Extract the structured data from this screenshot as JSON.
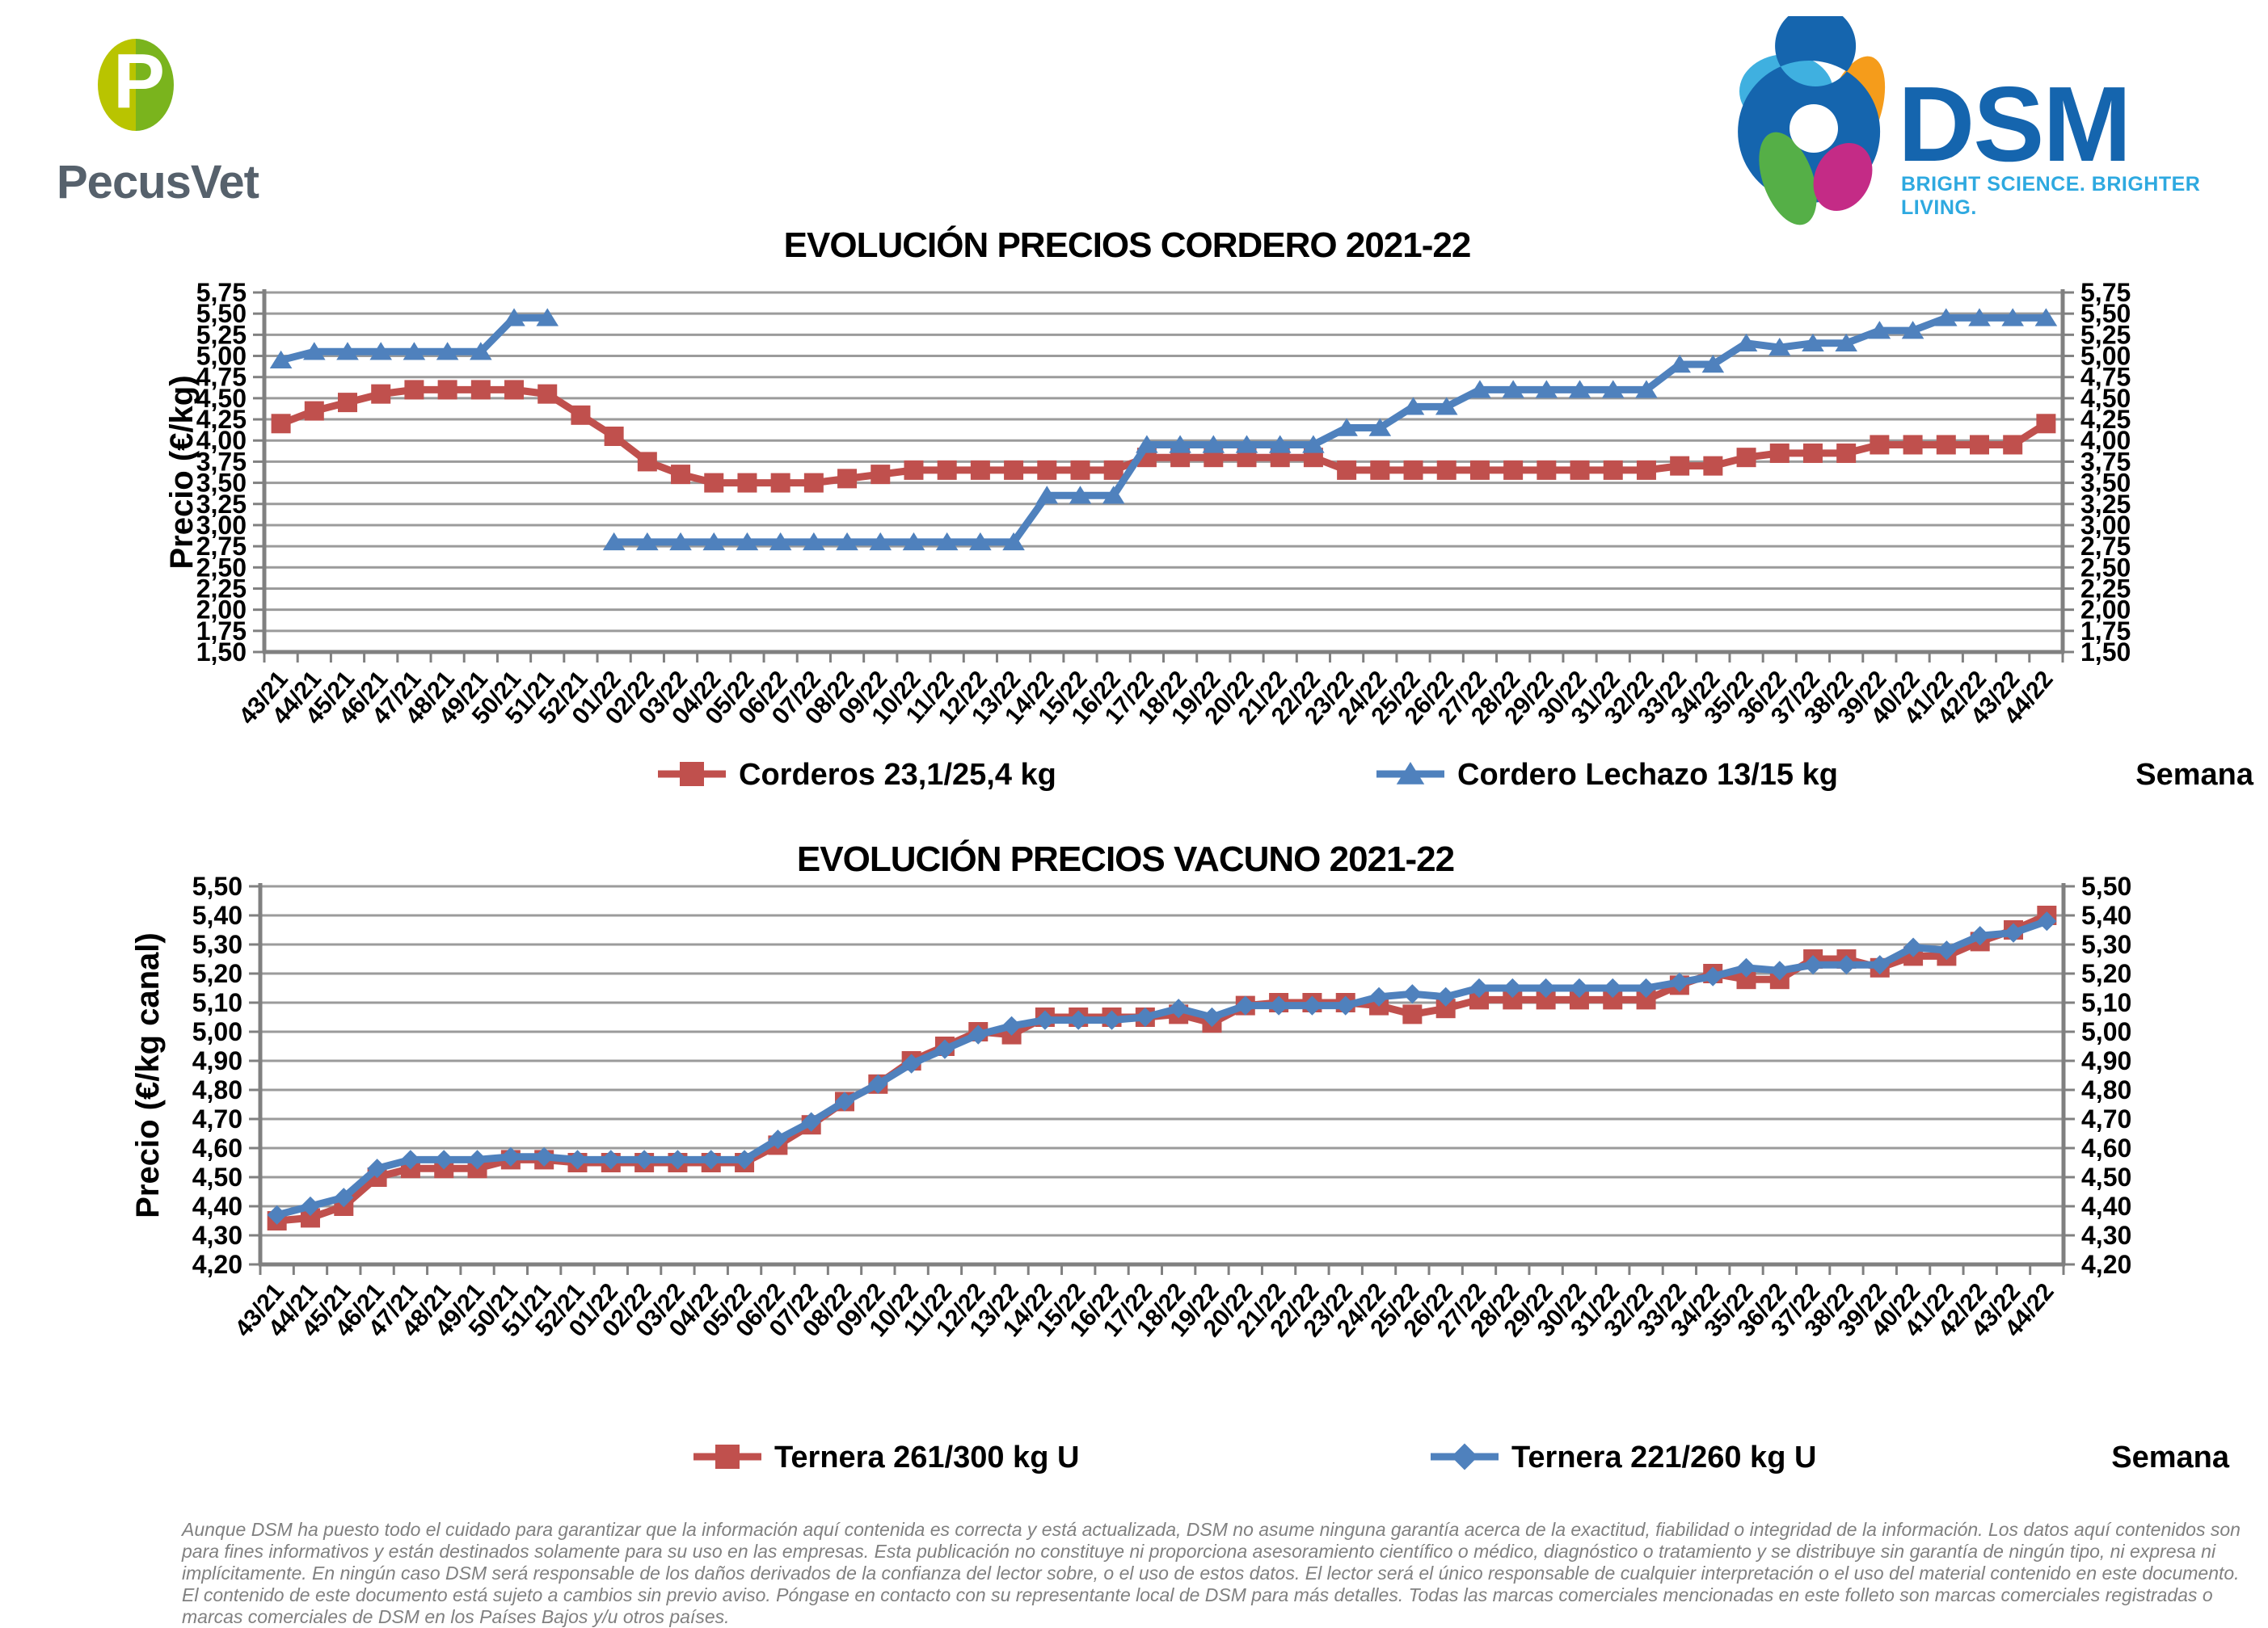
{
  "header": {
    "pecusvet": {
      "initial": "P",
      "name": "PecusVet"
    },
    "dsm": {
      "name": "DSM",
      "tagline": "BRIGHT SCIENCE. BRIGHTER LIVING."
    }
  },
  "colors": {
    "series_red": "#C0504D",
    "series_blue": "#4F81BD",
    "gridline": "#9B9B9B",
    "axis": "#808080",
    "pecusvet_left": "#B9C400",
    "pecusvet_right": "#7AB41D",
    "pecusvet_text": "#56616C",
    "dsm_blue": "#1565AE",
    "dsm_cyan": "#3FB0E0",
    "dsm_orange": "#F59C1B",
    "dsm_green": "#55AF47",
    "dsm_magenta": "#C42B86",
    "footer_gray": "#808080"
  },
  "chart_data": [
    {
      "type": "line",
      "title": "EVOLUCIÓN PRECIOS CORDERO 2021-22",
      "ylabel": "Precio (€/kg)",
      "xlabel": "Semana",
      "ylim": [
        1.5,
        5.75
      ],
      "ystep": 0.25,
      "grid": true,
      "legend_position": "bottom",
      "categories": [
        "43/21",
        "44/21",
        "45/21",
        "46/21",
        "47/21",
        "48/21",
        "49/21",
        "50/21",
        "51/21",
        "52/21",
        "01/22",
        "02/22",
        "03/22",
        "04/22",
        "05/22",
        "06/22",
        "07/22",
        "08/22",
        "09/22",
        "10/22",
        "11/22",
        "12/22",
        "13/22",
        "14/22",
        "15/22",
        "16/22",
        "17/22",
        "18/22",
        "19/22",
        "20/22",
        "21/22",
        "22/22",
        "23/22",
        "24/22",
        "25/22",
        "26/22",
        "27/22",
        "28/22",
        "29/22",
        "30/22",
        "31/22",
        "32/22",
        "33/22",
        "34/22",
        "35/22",
        "36/22",
        "37/22",
        "38/22",
        "39/22",
        "40/22",
        "41/22",
        "42/22",
        "43/22",
        "44/22"
      ],
      "series": [
        {
          "name": "Corderos 23,1/25,4 kg",
          "color": "#C0504D",
          "marker": "square",
          "values": [
            4.2,
            4.35,
            4.45,
            4.55,
            4.6,
            4.6,
            4.6,
            4.6,
            4.55,
            4.3,
            4.05,
            3.75,
            3.6,
            3.5,
            3.5,
            3.5,
            3.5,
            3.55,
            3.6,
            3.65,
            3.65,
            3.65,
            3.65,
            3.65,
            3.65,
            3.65,
            3.8,
            3.8,
            3.8,
            3.8,
            3.8,
            3.8,
            3.65,
            3.65,
            3.65,
            3.65,
            3.65,
            3.65,
            3.65,
            3.65,
            3.65,
            3.65,
            3.7,
            3.7,
            3.8,
            3.85,
            3.85,
            3.85,
            3.95,
            3.95,
            3.95,
            3.95,
            3.95,
            4.2
          ]
        },
        {
          "name": "Cordero Lechazo 13/15 kg",
          "color": "#4F81BD",
          "marker": "triangle",
          "values": [
            4.95,
            5.05,
            5.05,
            5.05,
            5.05,
            5.05,
            5.05,
            5.45,
            5.45,
            null,
            2.8,
            2.8,
            2.8,
            2.8,
            2.8,
            2.8,
            2.8,
            2.8,
            2.8,
            2.8,
            2.8,
            2.8,
            2.8,
            3.35,
            3.35,
            3.35,
            3.95,
            3.95,
            3.95,
            3.95,
            3.95,
            3.95,
            4.15,
            4.15,
            4.4,
            4.4,
            4.6,
            4.6,
            4.6,
            4.6,
            4.6,
            4.6,
            4.9,
            4.9,
            5.15,
            5.1,
            5.15,
            5.15,
            5.3,
            5.3,
            5.45,
            5.45,
            5.45,
            5.45
          ]
        }
      ]
    },
    {
      "type": "line",
      "title": "EVOLUCIÓN PRECIOS VACUNO 2021-22",
      "ylabel": "Precio (€/kg canal)",
      "xlabel": "Semana",
      "ylim": [
        4.2,
        5.5
      ],
      "ystep": 0.1,
      "grid": true,
      "legend_position": "bottom",
      "categories": [
        "43/21",
        "44/21",
        "45/21",
        "46/21",
        "47/21",
        "48/21",
        "49/21",
        "50/21",
        "51/21",
        "52/21",
        "01/22",
        "02/22",
        "03/22",
        "04/22",
        "05/22",
        "06/22",
        "07/22",
        "08/22",
        "09/22",
        "10/22",
        "11/22",
        "12/22",
        "13/22",
        "14/22",
        "15/22",
        "16/22",
        "17/22",
        "18/22",
        "19/22",
        "20/22",
        "21/22",
        "22/22",
        "23/22",
        "24/22",
        "25/22",
        "26/22",
        "27/22",
        "28/22",
        "29/22",
        "30/22",
        "31/22",
        "32/22",
        "33/22",
        "34/22",
        "35/22",
        "36/22",
        "37/22",
        "38/22",
        "39/22",
        "40/22",
        "41/22",
        "42/22",
        "43/22",
        "44/22"
      ],
      "series": [
        {
          "name": "Ternera 261/300 kg U",
          "color": "#C0504D",
          "marker": "square",
          "values": [
            4.35,
            4.36,
            4.4,
            4.5,
            4.53,
            4.53,
            4.53,
            4.56,
            4.56,
            4.55,
            4.55,
            4.55,
            4.55,
            4.55,
            4.55,
            4.61,
            4.68,
            4.76,
            4.82,
            4.9,
            4.95,
            5.0,
            4.99,
            5.05,
            5.05,
            5.05,
            5.05,
            5.06,
            5.03,
            5.09,
            5.1,
            5.1,
            5.1,
            5.09,
            5.06,
            5.08,
            5.11,
            5.11,
            5.11,
            5.11,
            5.11,
            5.11,
            5.16,
            5.2,
            5.18,
            5.18,
            5.25,
            5.25,
            5.22,
            5.26,
            5.26,
            5.31,
            5.35,
            5.4
          ]
        },
        {
          "name": "Ternera 221/260 kg U",
          "color": "#4F81BD",
          "marker": "diamond",
          "values": [
            4.37,
            4.4,
            4.43,
            4.53,
            4.56,
            4.56,
            4.56,
            4.57,
            4.57,
            4.56,
            4.56,
            4.56,
            4.56,
            4.56,
            4.56,
            4.63,
            4.69,
            4.76,
            4.82,
            4.89,
            4.94,
            4.99,
            5.02,
            5.04,
            5.04,
            5.04,
            5.05,
            5.08,
            5.05,
            5.09,
            5.09,
            5.09,
            5.09,
            5.12,
            5.13,
            5.12,
            5.15,
            5.15,
            5.15,
            5.15,
            5.15,
            5.15,
            5.17,
            5.19,
            5.22,
            5.21,
            5.23,
            5.23,
            5.23,
            5.29,
            5.28,
            5.33,
            5.34,
            5.38
          ]
        }
      ]
    }
  ],
  "footer": {
    "text": "Aunque DSM ha puesto todo el cuidado para garantizar que la información aquí contenida es correcta y está actualizada, DSM no asume ninguna garantía acerca de la exactitud, fiabilidad o integridad de la información. Los datos aquí contenidos son para fines informativos y están destinados solamente para su uso en las empresas. Esta publicación no constituye ni proporciona asesoramiento científico o médico, diagnóstico o tratamiento y se distribuye sin garantía de ningún tipo, ni expresa ni implícitamente. En ningún caso DSM será responsable de los daños derivados de la confianza del lector sobre, o el uso de estos datos. El lector será el único responsable de cualquier interpretación o el uso del material contenido en este documento. El contenido de este documento está sujeto a cambios sin previo aviso. Póngase en contacto con su representante local de DSM para más detalles. Todas las marcas comerciales mencionadas en este folleto son marcas comerciales registradas o marcas comerciales de DSM en los Países Bajos y/u otros países."
  }
}
